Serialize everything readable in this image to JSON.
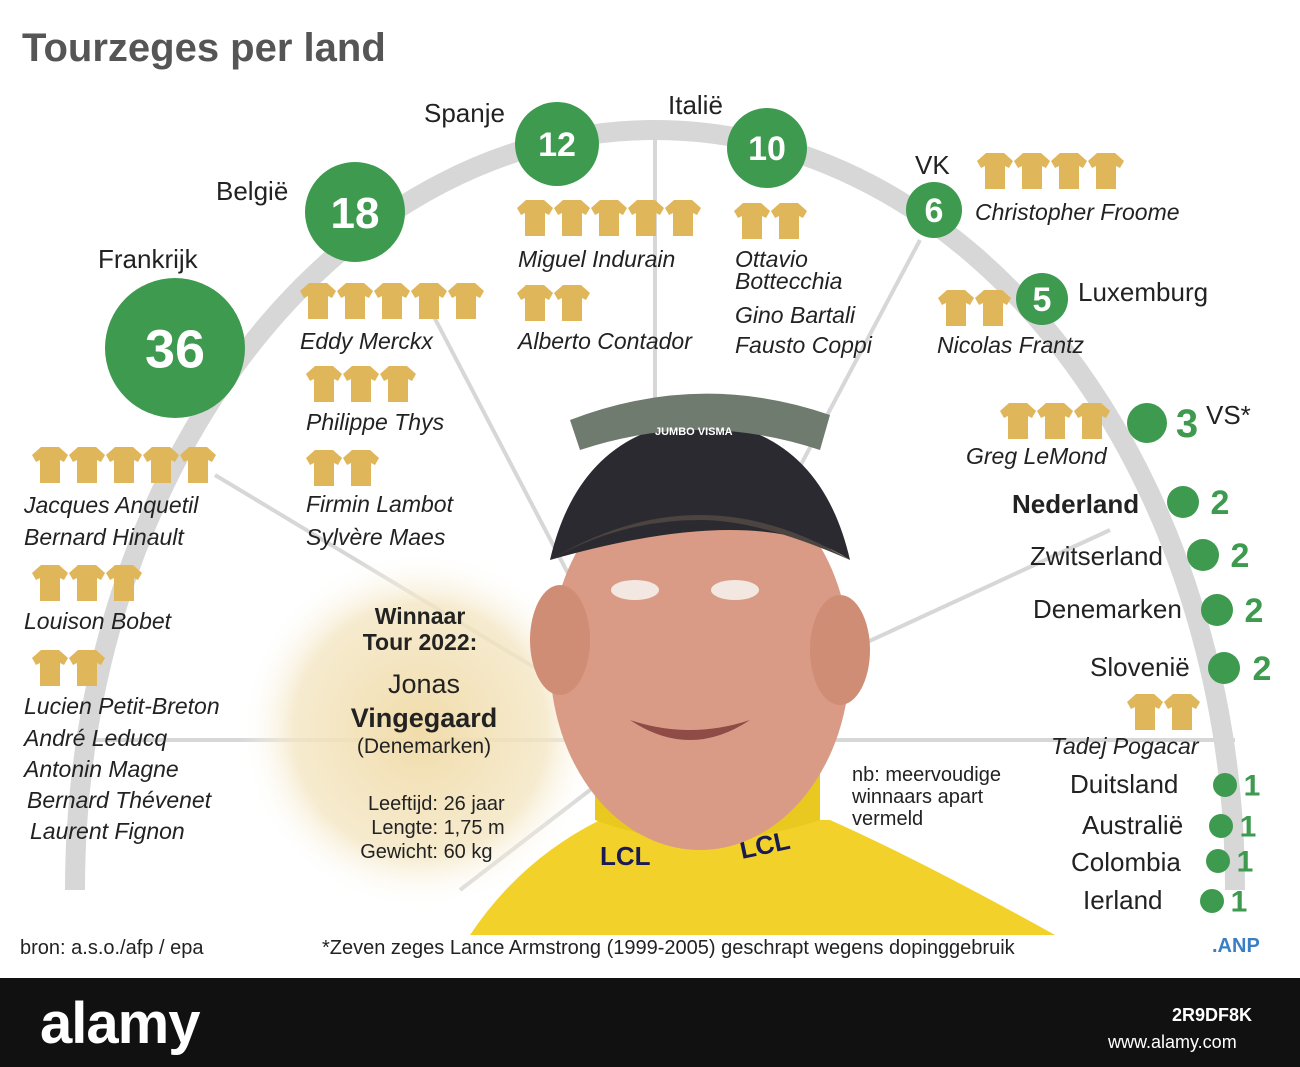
{
  "title": "Tourzeges per land",
  "colors": {
    "green": "#3d9a4f",
    "jersey": "#e0b65a",
    "arc": "#d7d7d7",
    "title": "#555555"
  },
  "chart_data": {
    "type": "bubble",
    "title": "Tourzeges per land",
    "series": [
      {
        "country": "Frankrijk",
        "wins": 36
      },
      {
        "country": "België",
        "wins": 18
      },
      {
        "country": "Spanje",
        "wins": 12
      },
      {
        "country": "Italië",
        "wins": 10
      },
      {
        "country": "VK",
        "wins": 6
      },
      {
        "country": "Luxemburg",
        "wins": 5
      },
      {
        "country": "VS*",
        "wins": 3
      },
      {
        "country": "Nederland",
        "wins": 2
      },
      {
        "country": "Zwitserland",
        "wins": 2
      },
      {
        "country": "Denemarken",
        "wins": 2
      },
      {
        "country": "Slovenië",
        "wins": 2
      },
      {
        "country": "Duitsland",
        "wins": 1
      },
      {
        "country": "Australië",
        "wins": 1
      },
      {
        "country": "Colombia",
        "wins": 1
      },
      {
        "country": "Ierland",
        "wins": 1
      }
    ],
    "multiple_winners": [
      {
        "name": "Jacques Anquetil",
        "wins": 5,
        "country": "Frankrijk"
      },
      {
        "name": "Bernard Hinault",
        "wins": 5,
        "country": "Frankrijk"
      },
      {
        "name": "Louison Bobet",
        "wins": 3,
        "country": "Frankrijk"
      },
      {
        "name": "Lucien Petit-Breton",
        "wins": 2,
        "country": "Frankrijk"
      },
      {
        "name": "André Leducq",
        "wins": 2,
        "country": "Frankrijk"
      },
      {
        "name": "Antonin Magne",
        "wins": 2,
        "country": "Frankrijk"
      },
      {
        "name": "Bernard Thévenet",
        "wins": 2,
        "country": "Frankrijk"
      },
      {
        "name": "Laurent Fignon",
        "wins": 2,
        "country": "Frankrijk"
      },
      {
        "name": "Eddy Merckx",
        "wins": 5,
        "country": "België"
      },
      {
        "name": "Philippe Thys",
        "wins": 3,
        "country": "België"
      },
      {
        "name": "Firmin Lambot",
        "wins": 2,
        "country": "België"
      },
      {
        "name": "Sylvère Maes",
        "wins": 2,
        "country": "België"
      },
      {
        "name": "Miguel Indurain",
        "wins": 5,
        "country": "Spanje"
      },
      {
        "name": "Alberto Contador",
        "wins": 2,
        "country": "Spanje"
      },
      {
        "name": "Ottavio Bottecchia",
        "wins": 2,
        "country": "Italië"
      },
      {
        "name": "Gino Bartali",
        "wins": 2,
        "country": "Italië"
      },
      {
        "name": "Fausto Coppi",
        "wins": 2,
        "country": "Italië"
      },
      {
        "name": "Christopher Froome",
        "wins": 4,
        "country": "VK"
      },
      {
        "name": "Nicolas Frantz",
        "wins": 2,
        "country": "Luxemburg"
      },
      {
        "name": "Greg LeMond",
        "wins": 3,
        "country": "VS*"
      },
      {
        "name": "Tadej Pogacar",
        "wins": 2,
        "country": "Slovenië"
      }
    ]
  },
  "labels": {
    "countries": [
      "Frankrijk",
      "België",
      "Spanje",
      "Italië",
      "VK",
      "Luxemburg",
      "VS*",
      "Nederland",
      "Zwitserland",
      "Denemarken",
      "Slovenië",
      "Duitsland",
      "Australië",
      "Colombia",
      "Ierland"
    ],
    "values": [
      "36",
      "18",
      "12",
      "10",
      "6",
      "5",
      "3",
      "2",
      "2",
      "2",
      "2",
      "1",
      "1",
      "1",
      "1"
    ],
    "names": {
      "anquetil": "Jacques Anquetil",
      "hinault": "Bernard Hinault",
      "bobet": "Louison Bobet",
      "petitbreton": "Lucien Petit-Breton",
      "leducq": "André Leducq",
      "magne": "Antonin Magne",
      "thevenet": "Bernard Thévenet",
      "fignon": "Laurent Fignon",
      "merckx": "Eddy Merckx",
      "thys": "Philippe Thys",
      "lambot": "Firmin Lambot",
      "maes": "Sylvère Maes",
      "indurain": "Miguel Indurain",
      "contador": "Alberto Contador",
      "ottavio": "Ottavio",
      "bottecchia": "Bottecchia",
      "bartali": "Gino Bartali",
      "coppi": "Fausto Coppi",
      "froome": "Christopher Froome",
      "frantz": "Nicolas Frantz",
      "lemond": "Greg LeMond",
      "pogacar": "Tadej Pogacar"
    }
  },
  "winner_box": {
    "heading1": "Winnaar",
    "heading2": "Tour 2022:",
    "first_name": "Jonas",
    "last_name": "Vingegaard",
    "country": "(Denemarken)",
    "age_label": "Leeftijd:",
    "age_value": "26 jaar",
    "length_label": "Lengte:",
    "length_value": "1,75 m",
    "weight_label": "Gewicht:",
    "weight_value": "60 kg"
  },
  "note": {
    "line1": "nb: meervoudige",
    "line2": "winnaars apart",
    "line3": "vermeld"
  },
  "footer": {
    "source": "bron: a.s.o./afp / epa",
    "footnote": "*Zeven zeges Lance Armstrong (1999-2005) geschrapt wegens dopinggebruik",
    "agency": ".ANP"
  },
  "photo": {
    "cap_text": "JUMBO VISMA",
    "jersey_text_left": "LCL",
    "jersey_text_right": "LCL"
  },
  "watermark": {
    "logo": "alamy",
    "image_id": "2R9DF8K",
    "url": "www.alamy.com"
  }
}
